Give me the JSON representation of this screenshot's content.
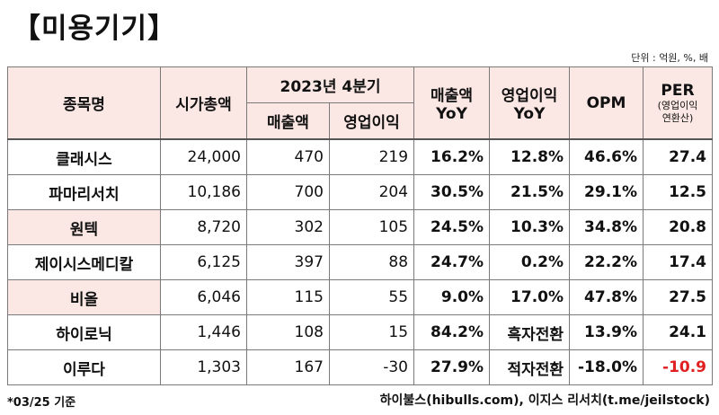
{
  "title": "【미용기기】",
  "unit_note": "단위 : 억원, %, 배",
  "headers": {
    "name": "종목명",
    "market_cap": "시가총액",
    "quarter_group": "2023년 4분기",
    "q_sales": "매출액",
    "q_op": "영업이익",
    "sales_yoy_1": "매출액",
    "sales_yoy_2": "YoY",
    "op_yoy_1": "영업이익",
    "op_yoy_2": "YoY",
    "opm": "OPM",
    "per_main": "PER",
    "per_sub1": "(영업이익",
    "per_sub2": "연환산)"
  },
  "rows": [
    {
      "name": "클래시스",
      "market_cap": "24,000",
      "sales": "470",
      "op": "219",
      "sales_yoy": "16.2%",
      "op_yoy": "12.8%",
      "opm": "46.6%",
      "per": "27.4",
      "highlight": false
    },
    {
      "name": "파마리서치",
      "market_cap": "10,186",
      "sales": "700",
      "op": "204",
      "sales_yoy": "30.5%",
      "op_yoy": "21.5%",
      "opm": "29.1%",
      "per": "12.5",
      "highlight": false
    },
    {
      "name": "원텍",
      "market_cap": "8,720",
      "sales": "302",
      "op": "105",
      "sales_yoy": "24.5%",
      "op_yoy": "10.3%",
      "opm": "34.8%",
      "per": "20.8",
      "highlight": true
    },
    {
      "name": "제이시스메디칼",
      "market_cap": "6,125",
      "sales": "397",
      "op": "88",
      "sales_yoy": "24.7%",
      "op_yoy": "0.2%",
      "opm": "22.2%",
      "per": "17.4",
      "highlight": false
    },
    {
      "name": "비올",
      "market_cap": "6,046",
      "sales": "115",
      "op": "55",
      "sales_yoy": "9.0%",
      "op_yoy": "17.0%",
      "opm": "47.8%",
      "per": "27.5",
      "highlight": true
    },
    {
      "name": "하이로닉",
      "market_cap": "1,446",
      "sales": "108",
      "op": "15",
      "sales_yoy": "84.2%",
      "op_yoy": "흑자전환",
      "opm": "13.9%",
      "per": "24.1",
      "highlight": false
    },
    {
      "name": "이루다",
      "market_cap": "1,303",
      "sales": "167",
      "op": "-30",
      "sales_yoy": "27.9%",
      "op_yoy": "적자전환",
      "opm": "-18.0%",
      "per": "-10.9",
      "highlight": false
    }
  ],
  "negative_color": "#e02020",
  "highlight_color": "#fbe7e4",
  "footnote_left": "*03/25 기준",
  "footnote_right": "하이불스(hibulls.com), 이지스 리서치(t.me/jeilstock)"
}
